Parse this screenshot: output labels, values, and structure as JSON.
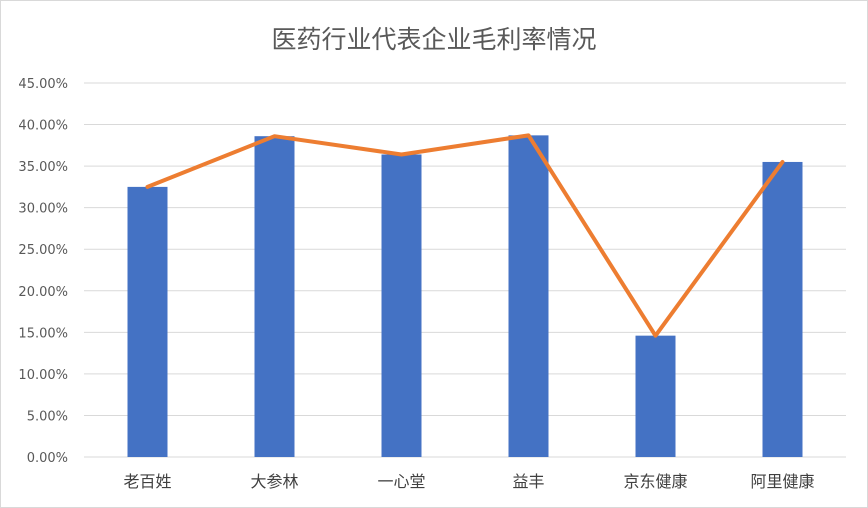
{
  "chart_data": {
    "type": "bar+line",
    "title": "医药行业代表企业毛利率情况",
    "categories": [
      "老百姓",
      "大参林",
      "一心堂",
      "益丰",
      "京东健康",
      "阿里健康"
    ],
    "series": [
      {
        "type": "bar",
        "values": [
          32.5,
          38.6,
          36.4,
          38.7,
          14.6,
          35.5
        ],
        "color": "#4472C4"
      },
      {
        "type": "line",
        "values": [
          32.5,
          38.6,
          36.4,
          38.7,
          14.6,
          35.5
        ],
        "color": "#ED7D31"
      }
    ],
    "ylim": [
      0,
      45
    ],
    "yticks": [
      "0.00%",
      "5.00%",
      "10.00%",
      "15.00%",
      "20.00%",
      "25.00%",
      "30.00%",
      "35.00%",
      "40.00%",
      "45.00%"
    ],
    "grid": true,
    "legend": "none"
  }
}
